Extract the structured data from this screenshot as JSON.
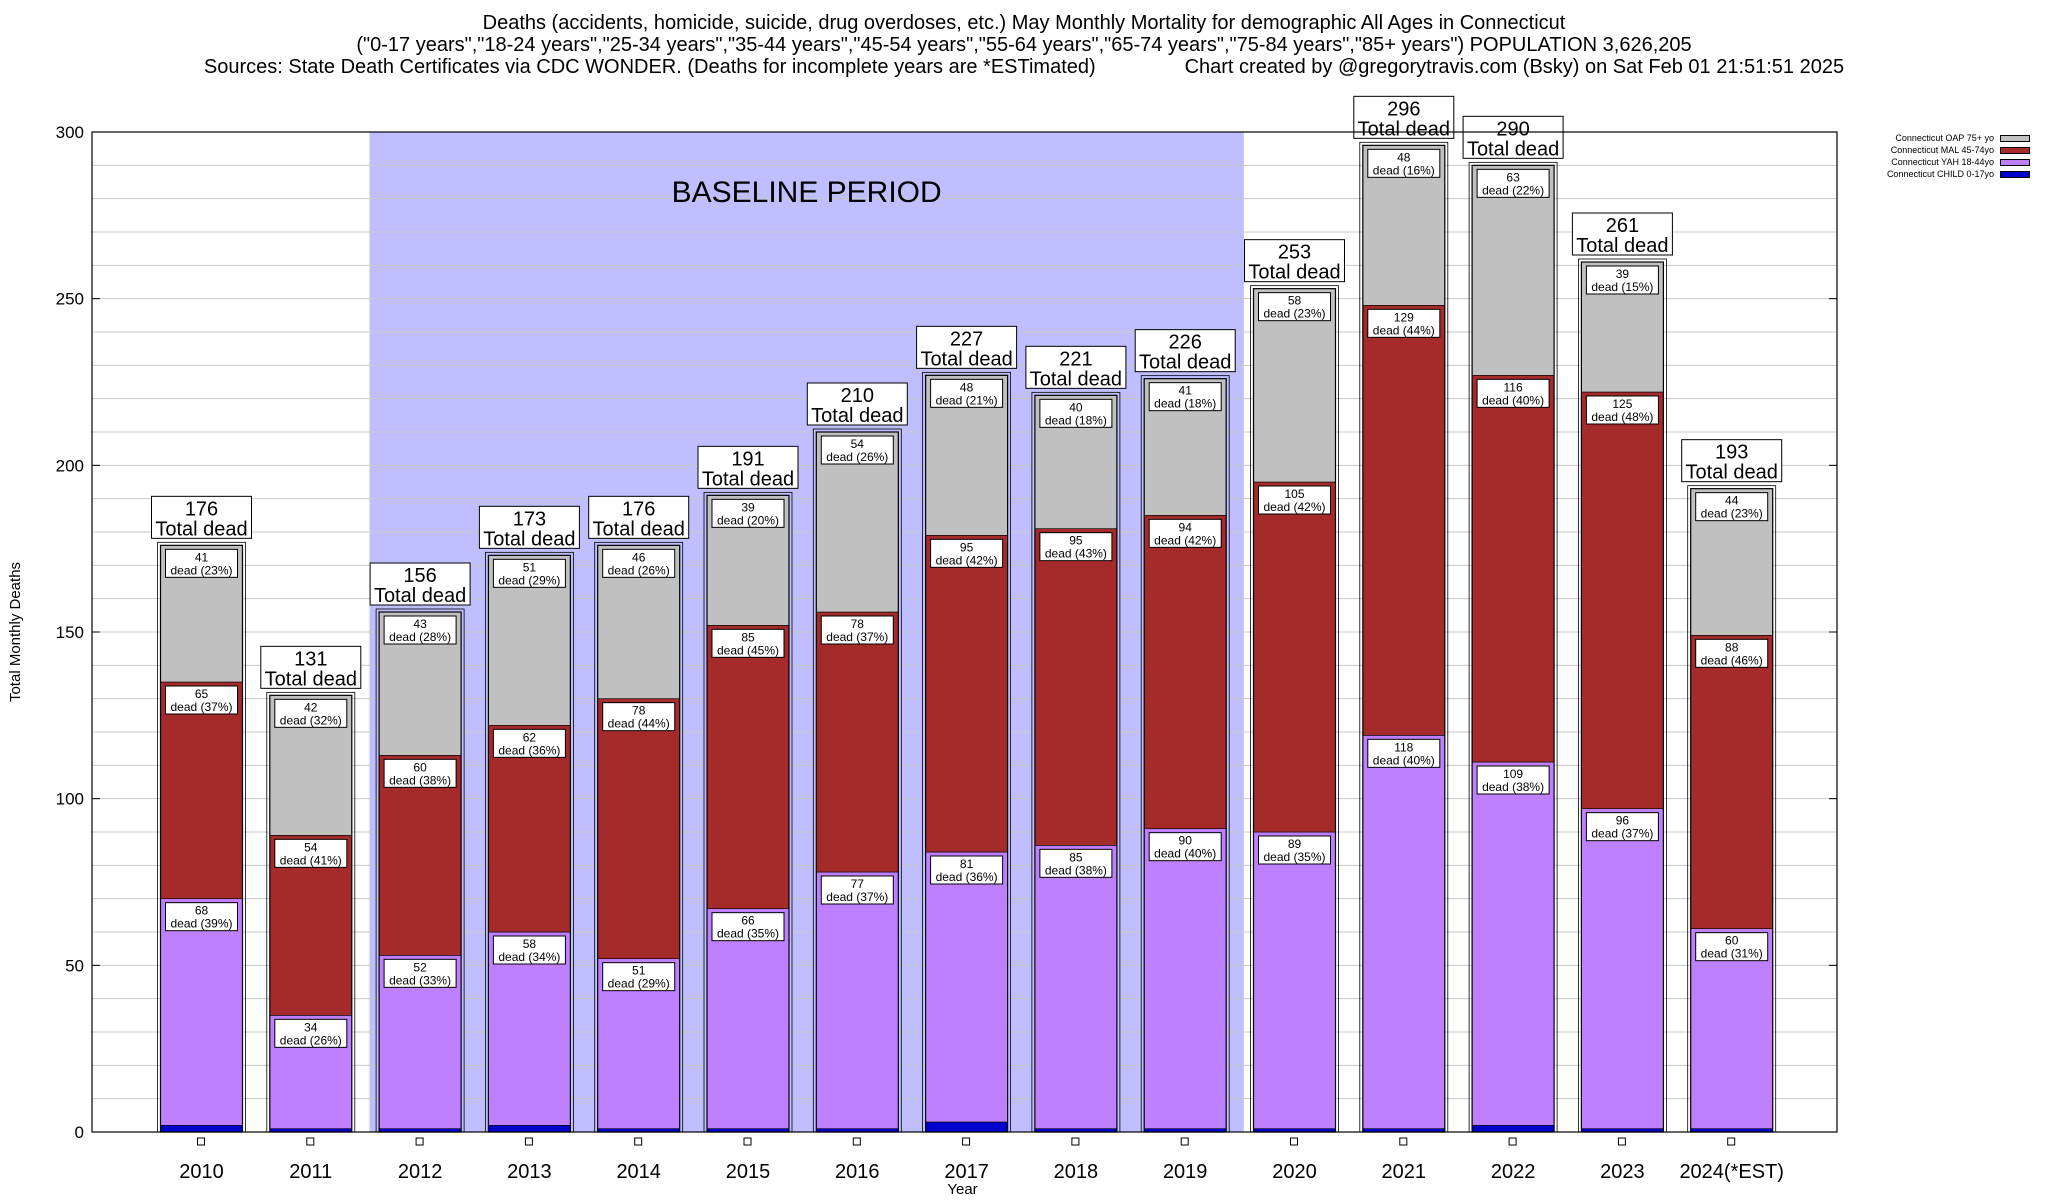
{
  "title": {
    "line1": "Deaths (accidents, homicide, suicide, drug overdoses, etc.) May Monthly Mortality for demographic All Ages in Connecticut",
    "line2": "(\"0-17 years\",\"18-24 years\",\"25-34 years\",\"35-44 years\",\"45-54 years\",\"55-64 years\",\"65-74 years\",\"75-84 years\",\"85+ years\") POPULATION 3,626,205",
    "line3_left": "Sources: State Death Certificates via CDC WONDER. (Deaths for incomplete years are *ESTimated)",
    "line3_right": "Chart created by @gregorytravis.com (Bsky) on Sat Feb 01 21:51:51 2025"
  },
  "chart_data": {
    "type": "bar",
    "stacked": true,
    "xlabel": "Year",
    "ylabel": "Total Monthly Deaths",
    "ylim": [
      0,
      300
    ],
    "yticks": [
      0,
      50,
      100,
      150,
      200,
      250,
      300
    ],
    "grid": "horizontal",
    "legend_position": "top-right",
    "baseline_label": "BASELINE PERIOD",
    "baseline_range": [
      "2012",
      "2019"
    ],
    "categories": [
      "2010",
      "2011",
      "2012",
      "2013",
      "2014",
      "2015",
      "2016",
      "2017",
      "2018",
      "2019",
      "2020",
      "2021",
      "2022",
      "2023",
      "2024(*EST)"
    ],
    "series": [
      {
        "name": "Connecticut CHILD 0-17yo",
        "color": "#0000cc",
        "values": [
          2,
          1,
          1,
          2,
          1,
          1,
          1,
          3,
          1,
          1,
          1,
          1,
          2,
          1,
          1
        ]
      },
      {
        "name": "Connecticut YAH 18-44yo",
        "color": "#bf80ff",
        "values": [
          68,
          34,
          52,
          58,
          51,
          66,
          77,
          81,
          85,
          90,
          89,
          118,
          109,
          96,
          60
        ]
      },
      {
        "name": "Connecticut MAL 45-74yo",
        "color": "#a52a2a",
        "values": [
          65,
          54,
          60,
          62,
          78,
          85,
          78,
          95,
          95,
          94,
          105,
          129,
          116,
          125,
          88
        ]
      },
      {
        "name": "Connecticut OAP 75+ yo",
        "color": "#c0c0c0",
        "values": [
          41,
          42,
          43,
          51,
          46,
          39,
          54,
          48,
          40,
          41,
          58,
          48,
          63,
          39,
          44
        ]
      }
    ],
    "segment_labels": {
      "yah": [
        "dead (39%)",
        "dead (26%)",
        "dead (33%)",
        "dead (34%)",
        "dead (29%)",
        "dead (35%)",
        "dead (37%)",
        "dead (36%)",
        "dead (38%)",
        "dead (40%)",
        "dead (35%)",
        "dead (40%)",
        "dead (38%)",
        "dead (37%)",
        "dead (31%)"
      ],
      "mal": [
        "dead (37%)",
        "dead (41%)",
        "dead (38%)",
        "dead (36%)",
        "dead (44%)",
        "dead (45%)",
        "dead (37%)",
        "dead (42%)",
        "dead (43%)",
        "dead (42%)",
        "dead (42%)",
        "dead (44%)",
        "dead (40%)",
        "dead (48%)",
        "dead (46%)"
      ],
      "oap": [
        "dead (23%)",
        "dead (32%)",
        "dead (28%)",
        "dead (29%)",
        "dead (26%)",
        "dead (20%)",
        "dead (26%)",
        "dead (21%)",
        "dead (18%)",
        "dead (18%)",
        "dead (23%)",
        "dead (16%)",
        "dead (22%)",
        "dead (15%)",
        "dead (23%)"
      ]
    },
    "totals": [
      176,
      131,
      156,
      173,
      176,
      191,
      210,
      227,
      221,
      226,
      253,
      296,
      290,
      261,
      193
    ],
    "total_caption": "Total dead"
  }
}
